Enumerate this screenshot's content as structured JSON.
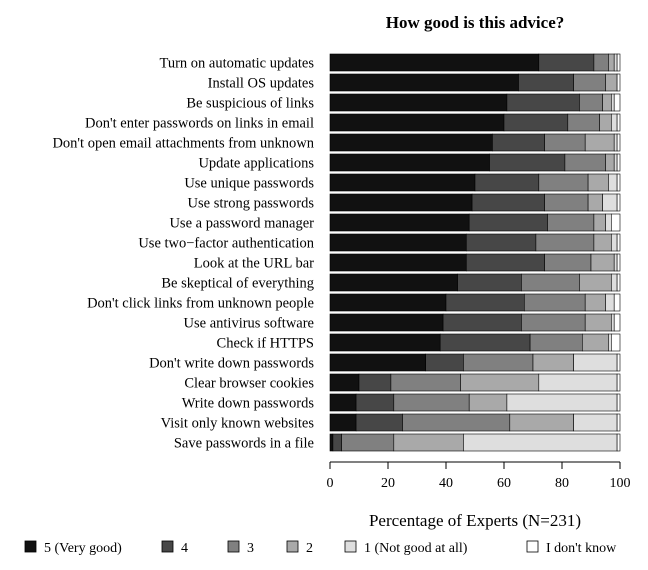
{
  "chart_data": {
    "type": "bar",
    "orientation": "horizontal",
    "stacked": true,
    "title": "How good is this advice?",
    "xlabel": "Percentage of Experts (N=231)",
    "xlim": [
      0,
      100
    ],
    "xticks": [
      "0",
      "20",
      "40",
      "60",
      "80",
      "100"
    ],
    "grid": false,
    "legend_position": "bottom",
    "categories": [
      "Turn on automatic updates",
      "Install OS updates",
      "Be suspicious of links",
      "Don't enter passwords on links in email",
      "Don't open email attachments from unknown",
      "Update applications",
      "Use unique passwords",
      "Use strong passwords",
      "Use a password manager",
      "Use two−factor authentication",
      "Look at the URL bar",
      "Be skeptical of everything",
      "Don't click links from unknown people",
      "Use antivirus software",
      "Check if HTTPS",
      "Don't write down passwords",
      "Clear browser cookies",
      "Write down passwords",
      "Visit only known websites",
      "Save passwords in a file"
    ],
    "series": [
      {
        "name": "5 (Very good)",
        "color": "#111111",
        "values": [
          72,
          65,
          61,
          60,
          56,
          55,
          50,
          49,
          48,
          47,
          47,
          44,
          40,
          39,
          38,
          33,
          10,
          9,
          9,
          1
        ]
      },
      {
        "name": "4",
        "color": "#474747",
        "values": [
          19,
          19,
          25,
          22,
          18,
          26,
          22,
          25,
          27,
          24,
          27,
          22,
          27,
          27,
          31,
          13,
          11,
          13,
          16,
          3
        ]
      },
      {
        "name": "3",
        "color": "#808080",
        "values": [
          5,
          11,
          8,
          11,
          14,
          14,
          17,
          15,
          16,
          20,
          16,
          20,
          21,
          22,
          18,
          24,
          24,
          26,
          37,
          18
        ]
      },
      {
        "name": "2",
        "color": "#a9a9a9",
        "values": [
          2,
          4,
          3,
          4,
          10,
          3,
          7,
          5,
          4,
          6,
          8,
          11,
          7,
          9,
          9,
          14,
          27,
          13,
          22,
          24
        ]
      },
      {
        "name": "1 (Not good at all)",
        "color": "#dedede",
        "values": [
          1,
          0,
          1,
          2,
          1,
          1,
          3,
          5,
          2,
          2,
          1,
          2,
          3,
          1,
          1,
          15,
          27,
          38,
          15,
          53
        ]
      },
      {
        "name": "I don't know",
        "color": "#ffffff",
        "values": [
          1,
          1,
          2,
          1,
          1,
          1,
          1,
          1,
          3,
          1,
          1,
          1,
          2,
          2,
          3,
          1,
          1,
          1,
          1,
          1
        ]
      }
    ]
  }
}
